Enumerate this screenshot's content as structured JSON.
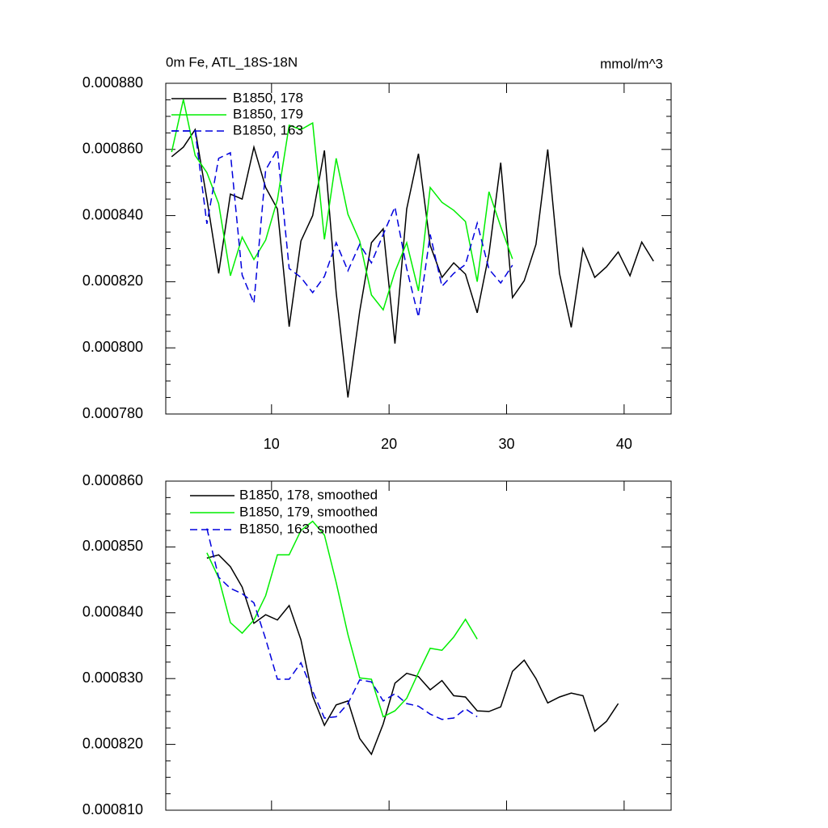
{
  "chart_data": [
    {
      "type": "line",
      "title": "0m Fe, ATL_18S-18N",
      "subtitle": "mmol/m^3",
      "xlim": [
        1,
        44
      ],
      "xticks": [
        10,
        20,
        30,
        40
      ],
      "ylim": [
        0.00078,
        0.00088
      ],
      "yticks": [
        {
          "value": 0.00078,
          "label": "0.000780"
        },
        {
          "value": 0.0008,
          "label": "0.000800"
        },
        {
          "value": 0.00082,
          "label": "0.000820"
        },
        {
          "value": 0.00084,
          "label": "0.000840"
        },
        {
          "value": 0.00086,
          "label": "0.000860"
        },
        {
          "value": 0.00088,
          "label": "0.000880"
        }
      ],
      "legend": "top-left",
      "series": [
        {
          "name": "B1850, 178",
          "color": "#000000",
          "line_style": "solid",
          "x": [
            1.5,
            2.5,
            3.5,
            4.5,
            5.5,
            6.5,
            7.5,
            8.5,
            9.5,
            10.5,
            11.5,
            12.5,
            13.5,
            14.5,
            15.5,
            16.5,
            17.5,
            18.5,
            19.5,
            20.5,
            21.5,
            22.5,
            23.5,
            24.5,
            25.5,
            26.5,
            27.5,
            28.5,
            29.5,
            30.5,
            31.5,
            32.5,
            33.5,
            34.5,
            35.5,
            36.5,
            37.5,
            38.5,
            39.5,
            40.5,
            41.5,
            42.5
          ],
          "values": [
            0.0008578,
            0.0008607,
            0.000866,
            0.000845,
            0.0008225,
            0.0008465,
            0.000845,
            0.0008607,
            0.0008485,
            0.000842,
            0.0008064,
            0.0008323,
            0.00084,
            0.0008597,
            0.0008167,
            0.000785,
            0.000811,
            0.0008318,
            0.000836,
            0.0008013,
            0.000842,
            0.0008587,
            0.000831,
            0.0008213,
            0.0008257,
            0.0008223,
            0.0008106,
            0.0008284,
            0.000856,
            0.0008152,
            0.0008203,
            0.0008313,
            0.00086,
            0.0008225,
            0.0008062,
            0.00083,
            0.0008213,
            0.0008245,
            0.000829,
            0.0008218,
            0.000832,
            0.0008262
          ]
        },
        {
          "name": "B1850, 179",
          "color": "#00ee00",
          "line_style": "solid",
          "x": [
            1.5,
            2.5,
            3.5,
            4.5,
            5.5,
            6.5,
            7.5,
            8.5,
            9.5,
            10.5,
            11.5,
            12.5,
            13.5,
            14.5,
            15.5,
            16.5,
            17.5,
            18.5,
            19.5,
            20.5,
            21.5,
            22.5,
            23.5,
            24.5,
            25.5,
            26.5,
            27.5,
            28.5,
            29.5,
            30.5
          ],
          "values": [
            0.0008592,
            0.0008751,
            0.0008582,
            0.000853,
            0.0008436,
            0.0008218,
            0.0008335,
            0.0008267,
            0.0008326,
            0.0008448,
            0.0008673,
            0.000866,
            0.000868,
            0.0008328,
            0.0008573,
            0.0008404,
            0.0008323,
            0.000816,
            0.0008115,
            0.000823,
            0.0008318,
            0.0008172,
            0.0008485,
            0.000844,
            0.0008416,
            0.0008382,
            0.00082,
            0.0008472,
            0.0008367,
            0.0008269
          ]
        },
        {
          "name": "B1850, 163",
          "color": "#0000dd",
          "line_style": "dashed",
          "x": [
            1.5,
            2.5,
            3.5,
            4.5,
            5.5,
            6.5,
            7.5,
            8.5,
            9.5,
            10.5,
            11.5,
            12.5,
            13.5,
            14.5,
            15.5,
            16.5,
            17.5,
            18.5,
            19.5,
            20.5,
            21.5,
            22.5,
            23.5,
            24.5,
            25.5,
            26.5,
            27.5,
            28.5,
            29.5,
            30.5
          ],
          "values": [
            0.0008656,
            0.0008656,
            0.0008656,
            0.0008375,
            0.0008573,
            0.000859,
            0.000822,
            0.0008135,
            0.0008538,
            0.00086,
            0.000824,
            0.0008213,
            0.0008167,
            0.0008216,
            0.0008318,
            0.0008233,
            0.0008313,
            0.0008257,
            0.0008343,
            0.0008426,
            0.000824,
            0.0008093,
            0.0008343,
            0.0008186,
            0.0008225,
            0.0008252,
            0.0008377,
            0.0008238,
            0.0008196,
            0.000825
          ]
        }
      ]
    },
    {
      "type": "line",
      "xlim": [
        1,
        44
      ],
      "xticks": [
        10,
        20,
        30,
        40
      ],
      "ylim": [
        0.00081,
        0.00086
      ],
      "yticks": [
        {
          "value": 0.00081,
          "label": "0.000810"
        },
        {
          "value": 0.00082,
          "label": "0.000820"
        },
        {
          "value": 0.00083,
          "label": "0.000830"
        },
        {
          "value": 0.00084,
          "label": "0.000840"
        },
        {
          "value": 0.00085,
          "label": "0.000850"
        },
        {
          "value": 0.00086,
          "label": "0.000860"
        }
      ],
      "legend": "top-left",
      "series": [
        {
          "name": "B1850, 178, smoothed",
          "color": "#000000",
          "line_style": "solid",
          "x": [
            4.5,
            5.5,
            6.5,
            7.5,
            8.5,
            9.5,
            10.5,
            11.5,
            12.5,
            13.5,
            14.5,
            15.5,
            16.5,
            17.5,
            18.5,
            19.5,
            20.5,
            21.5,
            22.5,
            23.5,
            24.5,
            25.5,
            26.5,
            27.5,
            28.5,
            29.5,
            30.5,
            31.5,
            32.5,
            33.5,
            34.5,
            35.5,
            36.5,
            37.5,
            38.5,
            39.5
          ],
          "values": [
            0.0008483,
            0.0008488,
            0.000847,
            0.0008439,
            0.0008384,
            0.0008397,
            0.0008389,
            0.0008411,
            0.0008359,
            0.0008273,
            0.0008229,
            0.000826,
            0.0008266,
            0.0008209,
            0.0008185,
            0.0008231,
            0.0008293,
            0.0008308,
            0.0008303,
            0.0008283,
            0.0008297,
            0.0008274,
            0.0008272,
            0.0008251,
            0.000825,
            0.0008257,
            0.0008311,
            0.0008328,
            0.00083,
            0.0008263,
            0.0008272,
            0.0008278,
            0.0008274,
            0.000822,
            0.0008235,
            0.0008262
          ]
        },
        {
          "name": "B1850, 179, smoothed",
          "color": "#00ee00",
          "line_style": "solid",
          "x": [
            4.5,
            5.5,
            6.5,
            7.5,
            8.5,
            9.5,
            10.5,
            11.5,
            12.5,
            13.5,
            14.5,
            15.5,
            16.5,
            17.5,
            18.5,
            19.5,
            20.5,
            21.5,
            22.5,
            23.5,
            24.5,
            25.5,
            26.5,
            27.5
          ],
          "values": [
            0.0008491,
            0.0008453,
            0.0008385,
            0.0008369,
            0.0008389,
            0.0008426,
            0.0008488,
            0.0008488,
            0.0008525,
            0.0008539,
            0.0008518,
            0.0008446,
            0.0008367,
            0.0008301,
            0.0008299,
            0.0008242,
            0.0008251,
            0.000827,
            0.0008309,
            0.0008346,
            0.0008343,
            0.0008363,
            0.000839,
            0.000836
          ]
        },
        {
          "name": "B1850, 163, smoothed",
          "color": "#0000dd",
          "line_style": "dashed",
          "x": [
            4.5,
            5.5,
            6.5,
            7.5,
            8.5,
            9.5,
            10.5,
            11.5,
            12.5,
            13.5,
            14.5,
            15.5,
            16.5,
            17.5,
            18.5,
            19.5,
            20.5,
            21.5,
            22.5,
            23.5,
            24.5,
            25.5,
            26.5,
            27.5
          ],
          "values": [
            0.0008528,
            0.0008454,
            0.0008437,
            0.0008429,
            0.0008415,
            0.000836,
            0.0008299,
            0.0008299,
            0.0008324,
            0.0008281,
            0.000824,
            0.0008242,
            0.0008262,
            0.0008298,
            0.0008295,
            0.0008266,
            0.0008277,
            0.0008262,
            0.0008258,
            0.0008246,
            0.0008238,
            0.000824,
            0.0008254,
            0.0008242
          ]
        }
      ]
    }
  ]
}
